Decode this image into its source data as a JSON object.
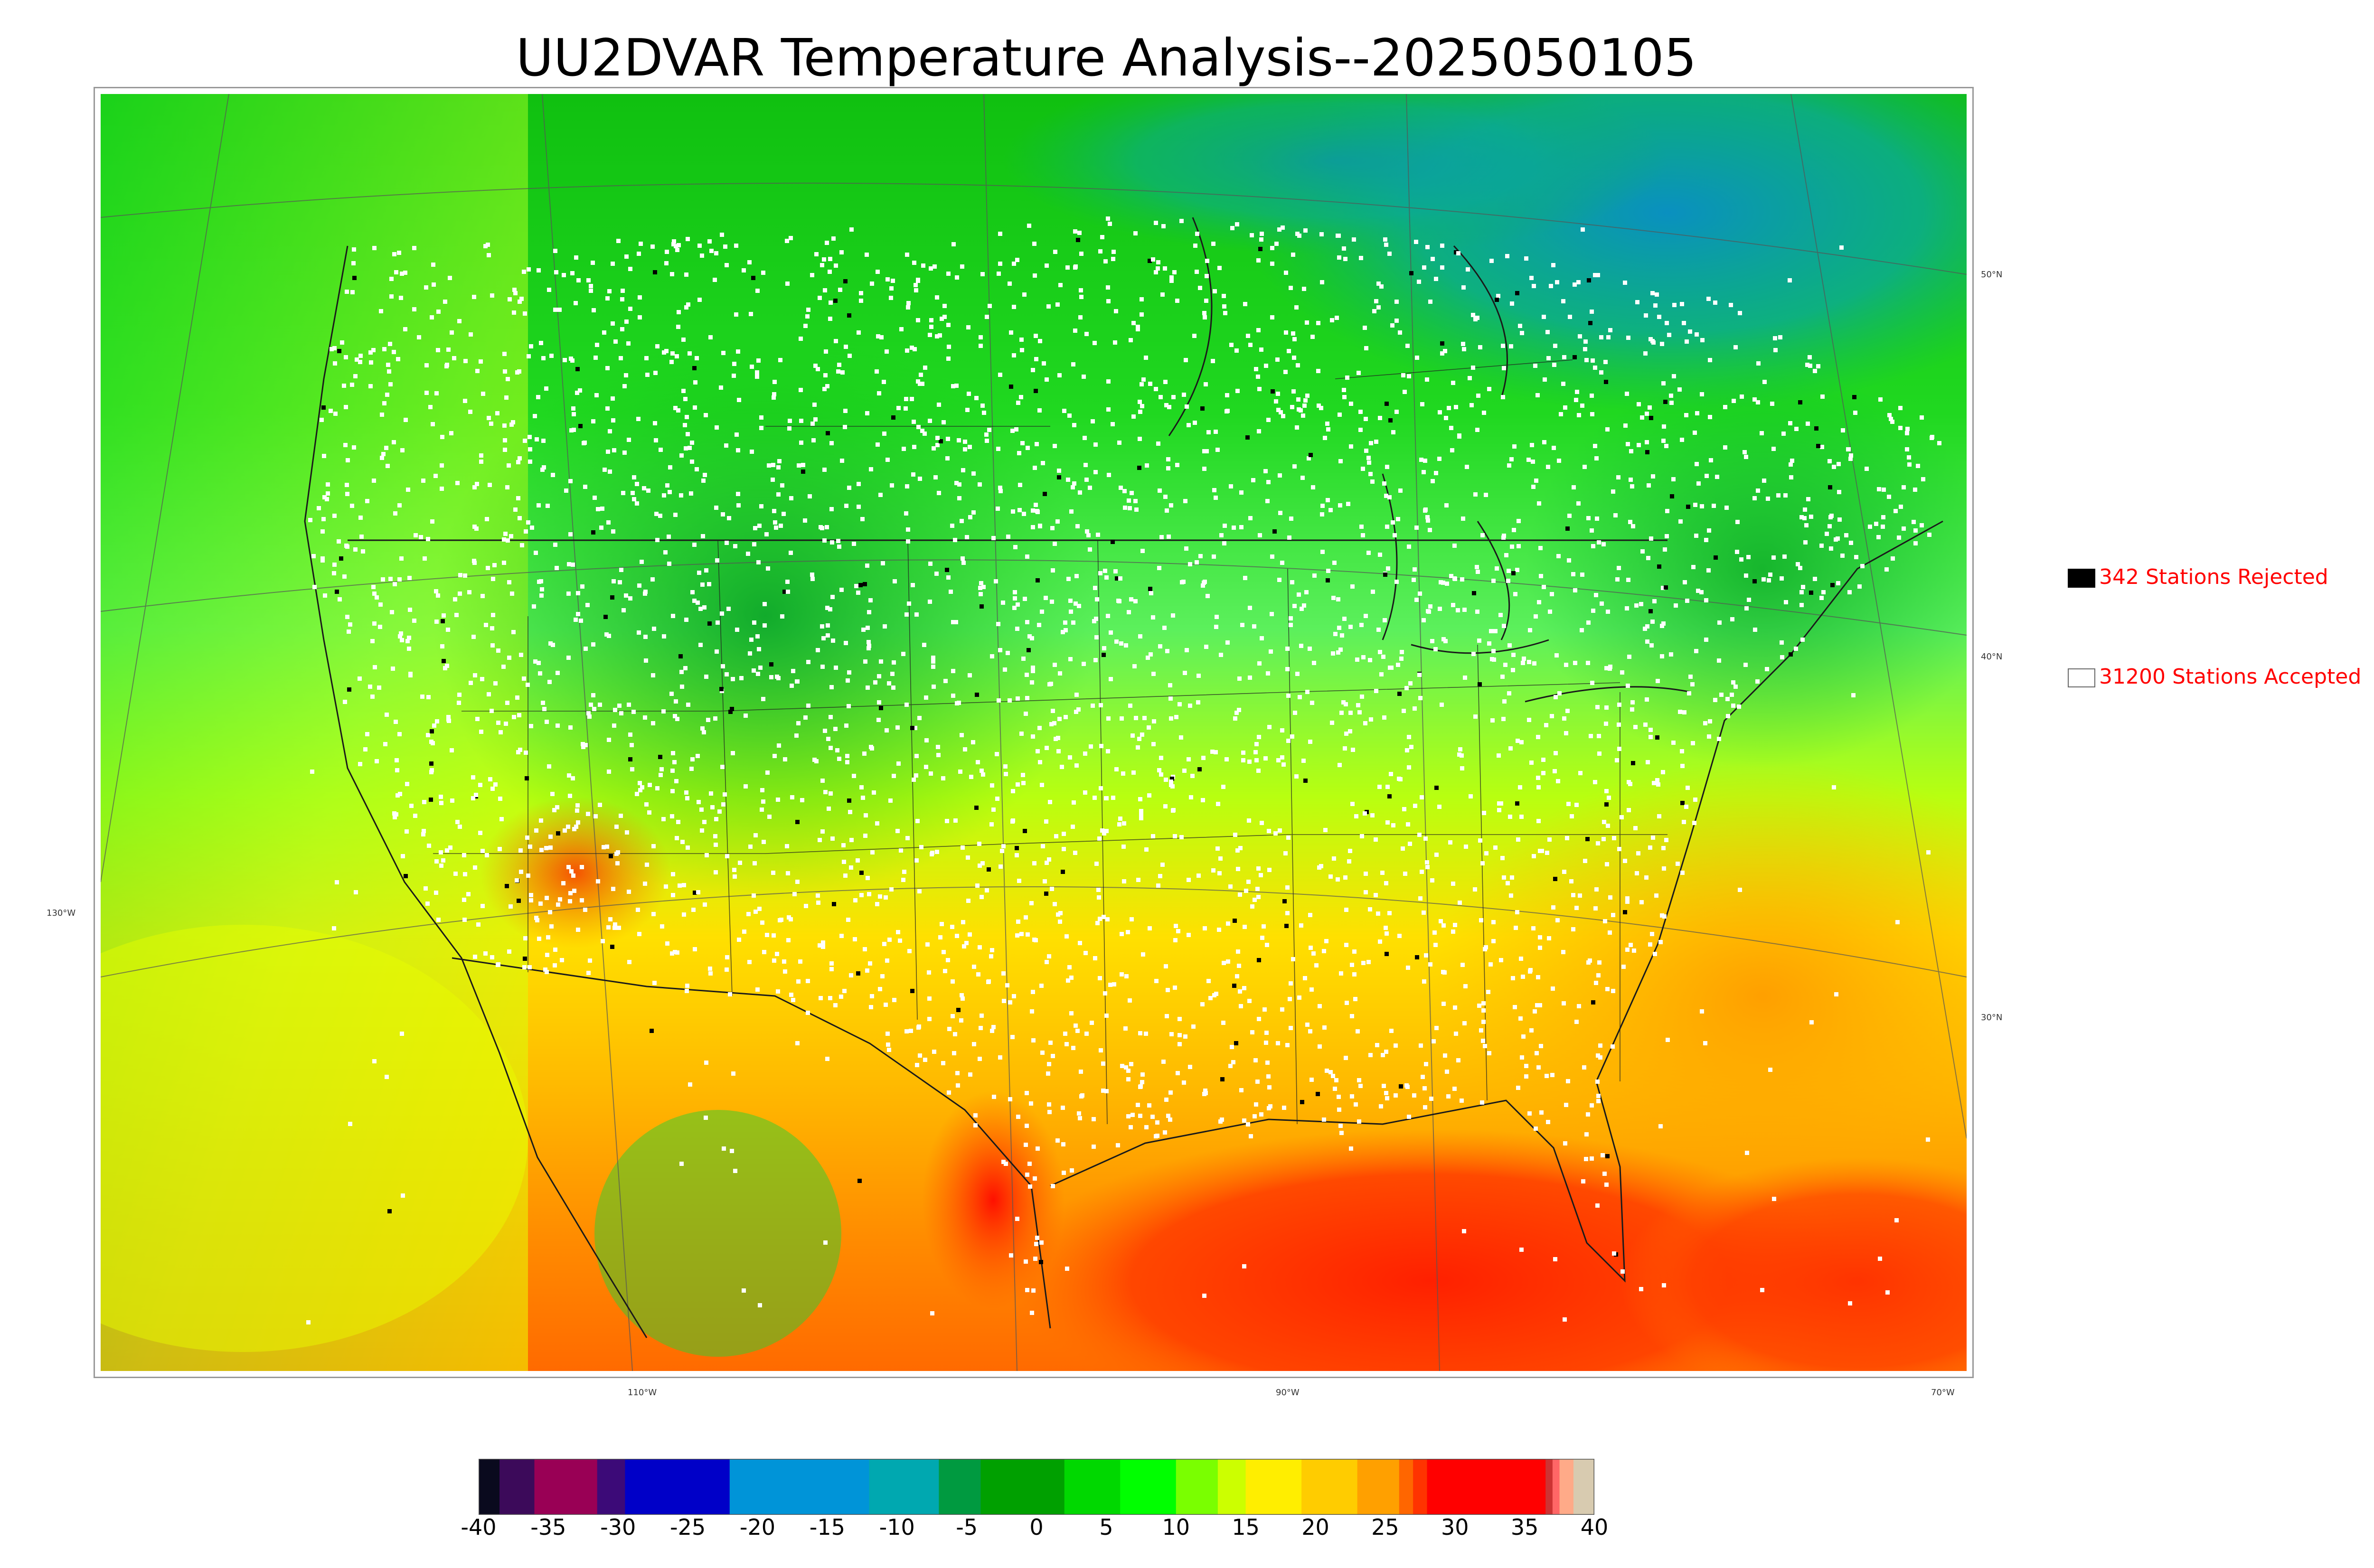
{
  "title": "UU2DVAR Temperature Analysis--2025050105",
  "legend": {
    "rejected": {
      "label": "342 Stations Rejected",
      "swatch_color": "#000000"
    },
    "accepted": {
      "label": "31200 Stations Accepted",
      "swatch_color": "#ffffff"
    }
  },
  "coordinate_labels": {
    "lat_50": "50°N",
    "lat_40": "40°N",
    "lat_30": "30°N",
    "lon_130": "130°W",
    "lon_110": "110°W",
    "lon_90": "90°W",
    "lon_70": "70°W"
  },
  "colorbar": {
    "min": -40,
    "max": 40,
    "ticks": [
      "-40",
      "-35",
      "-30",
      "-25",
      "-20",
      "-15",
      "-10",
      "-5",
      "0",
      "5",
      "10",
      "15",
      "20",
      "25",
      "30",
      "35",
      "40"
    ],
    "bands": [
      {
        "from": -40,
        "to": -38.5,
        "color": "#0a0a1e"
      },
      {
        "from": -38.5,
        "to": -36,
        "color": "#3c0a5a"
      },
      {
        "from": -36,
        "to": -31.5,
        "color": "#990055"
      },
      {
        "from": -31.5,
        "to": -29.5,
        "color": "#3c0a78"
      },
      {
        "from": -29.5,
        "to": -22,
        "color": "#0000c8"
      },
      {
        "from": -22,
        "to": -12,
        "color": "#0094d8"
      },
      {
        "from": -12,
        "to": -7,
        "color": "#00a8b0"
      },
      {
        "from": -7,
        "to": -4,
        "color": "#009a40"
      },
      {
        "from": -4,
        "to": 2,
        "color": "#00a000"
      },
      {
        "from": 2,
        "to": 6,
        "color": "#00d800"
      },
      {
        "from": 6,
        "to": 10,
        "color": "#00ff00"
      },
      {
        "from": 10,
        "to": 13,
        "color": "#7aff00"
      },
      {
        "from": 13,
        "to": 15,
        "color": "#ccff00"
      },
      {
        "from": 15,
        "to": 19,
        "color": "#ffee00"
      },
      {
        "from": 19,
        "to": 23,
        "color": "#ffcc00"
      },
      {
        "from": 23,
        "to": 26,
        "color": "#ffa000"
      },
      {
        "from": 26,
        "to": 27,
        "color": "#ff6600"
      },
      {
        "from": 27,
        "to": 28,
        "color": "#ff3300"
      },
      {
        "from": 28,
        "to": 36.5,
        "color": "#ff0000"
      },
      {
        "from": 36.5,
        "to": 37,
        "color": "#cc3333"
      },
      {
        "from": 37,
        "to": 37.5,
        "color": "#ff6666"
      },
      {
        "from": 37.5,
        "to": 38.5,
        "color": "#ffaa88"
      },
      {
        "from": 38.5,
        "to": 40,
        "color": "#d8cbb0"
      }
    ]
  },
  "map_colors": {
    "north_green": "#1ed01e",
    "canada_teal": "#0aa8a0",
    "mid_green": "#3cf03c",
    "plains_yellow": "#ccff00",
    "south_orange": "#ffb000",
    "gulf_red": "#ff3a00",
    "atlantic_orange": "#ff9a00",
    "pacific_yellow": "#d8ff00"
  }
}
